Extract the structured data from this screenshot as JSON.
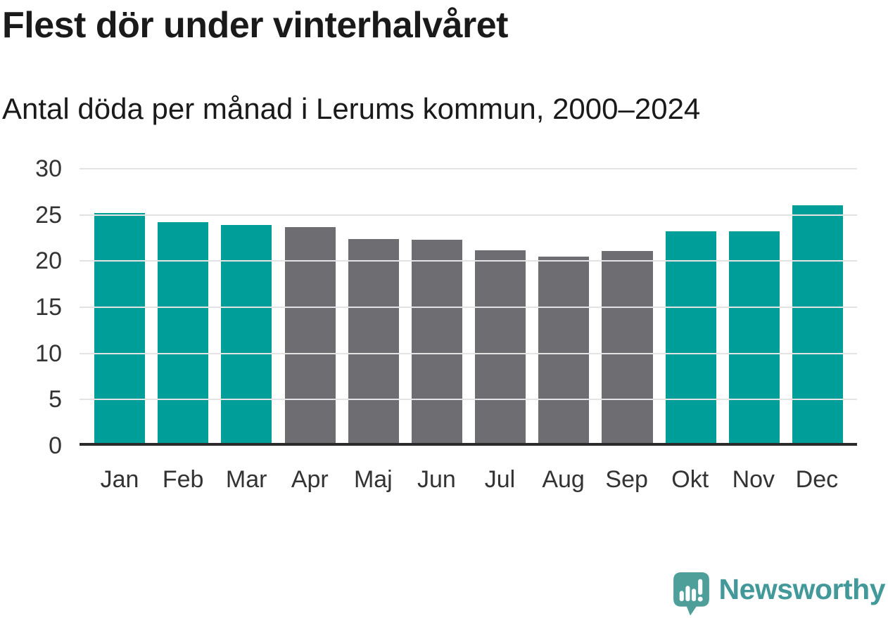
{
  "title": "Flest dör under vinterhalvåret",
  "subtitle": "Antal döda per månad i Lerums kommun, 2000–2024",
  "chart_data": {
    "type": "bar",
    "categories": [
      "Jan",
      "Feb",
      "Mar",
      "Apr",
      "Maj",
      "Jun",
      "Jul",
      "Aug",
      "Sep",
      "Okt",
      "Nov",
      "Dec"
    ],
    "values": [
      24.9,
      23.9,
      23.6,
      23.4,
      22.1,
      22.0,
      20.9,
      20.2,
      20.8,
      22.9,
      22.9,
      25.7
    ],
    "highlighted_winter_months": [
      true,
      true,
      true,
      false,
      false,
      false,
      false,
      false,
      false,
      true,
      true,
      true
    ],
    "title": "Flest dör under vinterhalvåret",
    "subtitle": "Antal döda per månad i Lerums kommun, 2000–2024",
    "xlabel": "",
    "ylabel": "",
    "ylim": [
      0,
      30
    ],
    "yticks": [
      0,
      5,
      10,
      15,
      20,
      25,
      30
    ],
    "grid": true,
    "legend": "none"
  },
  "colors": {
    "bar_highlight": "#009e99",
    "bar_default": "#6d6d72",
    "gridline": "#e3e3e3",
    "axis_line": "#2b2b2b",
    "tick_label": "#333333",
    "logo": "#43999a"
  },
  "branding": {
    "logo_text": "Newsworthy"
  }
}
